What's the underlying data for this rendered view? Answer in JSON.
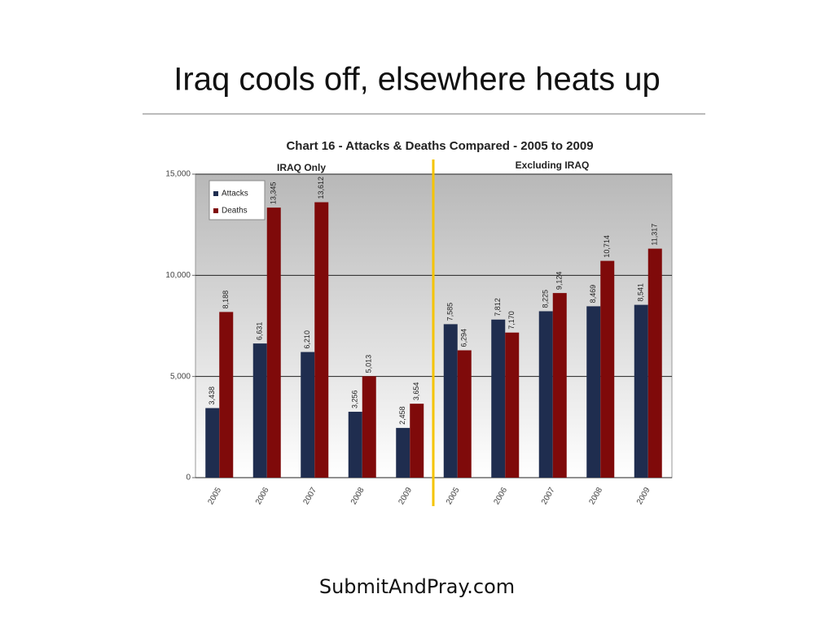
{
  "slide_title": "Iraq cools off, elsewhere heats up",
  "footer": "SubmitAndPray.com",
  "chart_data": {
    "type": "bar",
    "title": "Chart 16 - Attacks & Deaths Compared - 2005 to 2009",
    "annotations": [
      "IRAQ Only",
      "Excluding IRAQ"
    ],
    "categories": [
      "2005",
      "2006",
      "2007",
      "2008",
      "2009",
      "2005",
      "2006",
      "2007",
      "2008",
      "2009"
    ],
    "series": [
      {
        "name": "Attacks",
        "color": "#1f2d4f",
        "values": [
          3438,
          6631,
          6210,
          3256,
          2458,
          7585,
          7812,
          8225,
          8469,
          8541
        ],
        "value_labels": [
          "3,438",
          "6,631",
          "6,210",
          "3,256",
          "2,458",
          "7,585",
          "7,812",
          "8,225",
          "8,469",
          "8,541"
        ]
      },
      {
        "name": "Deaths",
        "color": "#7f0a0a",
        "values": [
          8188,
          13345,
          13612,
          5013,
          3654,
          6294,
          7170,
          9124,
          10714,
          11317
        ],
        "value_labels": [
          "8,188",
          "13,345",
          "13,612",
          "5,013",
          "3,654",
          "6,294",
          "7,170",
          "9,124",
          "10,714",
          "11,317"
        ]
      }
    ],
    "ylim": [
      0,
      15000
    ],
    "yticks": [
      0,
      {
        "value": 5000,
        "label": "5,000"
      },
      {
        "value": 10000,
        "label": "10,000"
      },
      {
        "value": 15000,
        "label": "15,000"
      }
    ],
    "grid": true,
    "legend": "upper left"
  }
}
